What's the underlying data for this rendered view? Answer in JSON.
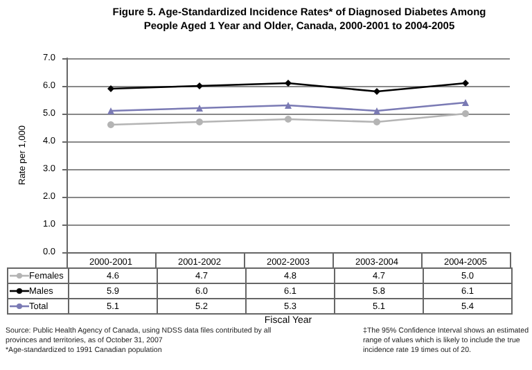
{
  "chart_data": {
    "type": "line",
    "title": "Figure 5. Age-Standardized Incidence Rates* of Diagnosed Diabetes Among People Aged 1 Year and Older, Canada, 2000-2001 to 2004-2005",
    "xlabel": "Fiscal Year",
    "ylabel": "Rate per 1,000",
    "categories": [
      "2000-2001",
      "2001-2002",
      "2002-2003",
      "2003-2004",
      "2004-2005"
    ],
    "series": [
      {
        "name": "Females",
        "color": "#b4b4b4",
        "marker": "circle",
        "values": [
          4.6,
          4.7,
          4.8,
          4.7,
          5.0
        ],
        "value_labels": [
          "4.6",
          "4.7",
          "4.8",
          "4.7",
          "5.0"
        ]
      },
      {
        "name": "Males",
        "color": "#000000",
        "marker": "diamond",
        "values": [
          5.9,
          6.0,
          6.1,
          5.8,
          6.1
        ],
        "value_labels": [
          "5.9",
          "6.0",
          "6.1",
          "5.8",
          "6.1"
        ]
      },
      {
        "name": "Total",
        "color": "#7a7ab4",
        "marker": "triangle",
        "values": [
          5.1,
          5.2,
          5.3,
          5.1,
          5.4
        ],
        "value_labels": [
          "5.1",
          "5.2",
          "5.3",
          "5.1",
          "5.4"
        ]
      }
    ],
    "ylim": [
      0,
      7
    ],
    "yticks": [
      {
        "value": 0,
        "label": "0.0"
      },
      {
        "value": 1,
        "label": "1.0"
      },
      {
        "value": 2,
        "label": "2.0"
      },
      {
        "value": 3,
        "label": "3.0"
      },
      {
        "value": 4,
        "label": "4.0"
      },
      {
        "value": 5,
        "label": "5.0"
      },
      {
        "value": 6,
        "label": "6.0"
      },
      {
        "value": 7,
        "label": "7.0"
      }
    ],
    "grid": "y",
    "legend": "bottom",
    "line_style": "solid",
    "annotations": [
      "Source: Public Health Agency of Canada, using NDSS data files contributed by all provinces and territories, as of October 31, 2007",
      "*Age-standardized to 1991 Canadian population",
      "‡The 95% Confidence Interval shows an estimated range of values which is likely to include the true incidence rate 19 times out of 20."
    ]
  }
}
